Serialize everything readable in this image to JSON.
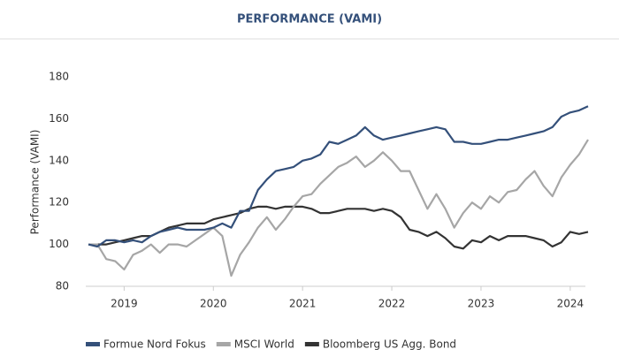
{
  "chart_data": {
    "type": "line",
    "title": "PERFORMANCE (VAMI)",
    "y_label": "Performance (VAMI)",
    "x": [
      2018.6,
      2018.7,
      2018.8,
      2018.9,
      2019.0,
      2019.1,
      2019.2,
      2019.3,
      2019.4,
      2019.5,
      2019.6,
      2019.7,
      2019.8,
      2019.9,
      2020.0,
      2020.1,
      2020.2,
      2020.3,
      2020.4,
      2020.5,
      2020.6,
      2020.7,
      2020.8,
      2020.9,
      2021.0,
      2021.1,
      2021.2,
      2021.3,
      2021.4,
      2021.5,
      2021.6,
      2021.7,
      2021.8,
      2021.9,
      2022.0,
      2022.1,
      2022.2,
      2022.3,
      2022.4,
      2022.5,
      2022.6,
      2022.7,
      2022.8,
      2022.9,
      2023.0,
      2023.1,
      2023.2,
      2023.3,
      2023.4,
      2023.5,
      2023.6,
      2023.7,
      2023.8,
      2023.9,
      2024.0,
      2024.1,
      2024.2
    ],
    "series": [
      {
        "name": "Formue Nord Fokus",
        "color": "#34507a",
        "values": [
          100,
          99,
          102,
          102,
          101,
          102,
          101,
          104,
          106,
          107,
          108,
          107,
          107,
          107,
          108,
          110,
          108,
          116,
          116,
          126,
          131,
          135,
          136,
          137,
          140,
          141,
          143,
          149,
          148,
          150,
          152,
          156,
          152,
          150,
          151,
          152,
          153,
          154,
          155,
          156,
          155,
          149,
          149,
          148,
          148,
          149,
          150,
          150,
          151,
          152,
          153,
          154,
          156,
          161,
          163,
          164,
          166
        ]
      },
      {
        "name": "MSCI World",
        "color": "#a6a6a6",
        "values": [
          100,
          100,
          93,
          92,
          88,
          95,
          97,
          100,
          96,
          100,
          100,
          99,
          102,
          105,
          108,
          104,
          85,
          95,
          101,
          108,
          113,
          107,
          112,
          118,
          123,
          124,
          129,
          133,
          137,
          139,
          142,
          137,
          140,
          144,
          140,
          135,
          135,
          126,
          117,
          124,
          117,
          108,
          115,
          120,
          117,
          123,
          120,
          125,
          126,
          131,
          135,
          128,
          123,
          132,
          138,
          143,
          150
        ]
      },
      {
        "name": "Bloomberg US Agg. Bond",
        "color": "#333333",
        "values": [
          100,
          100,
          100,
          101,
          102,
          103,
          104,
          104,
          106,
          108,
          109,
          110,
          110,
          110,
          112,
          113,
          114,
          115,
          117,
          118,
          118,
          117,
          118,
          118,
          118,
          117,
          115,
          115,
          116,
          117,
          117,
          117,
          116,
          117,
          116,
          113,
          107,
          106,
          104,
          106,
          103,
          99,
          98,
          102,
          101,
          104,
          102,
          104,
          104,
          104,
          103,
          102,
          99,
          101,
          106,
          105,
          106
        ]
      }
    ],
    "xlim": [
      2018.57,
      2024.17
    ],
    "xticks": [
      2019,
      2020,
      2021,
      2022,
      2023,
      2024
    ],
    "ylim": [
      80,
      180
    ],
    "yticks": [
      80,
      100,
      120,
      140,
      160,
      180
    ]
  }
}
